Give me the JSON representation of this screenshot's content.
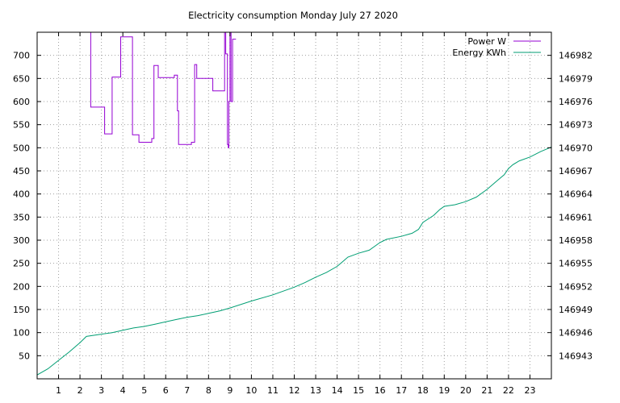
{
  "chart_data": {
    "type": "line",
    "title": "Electricity consumption Monday July 27 2020",
    "xlabel": "",
    "ylabel": "",
    "y2label": "",
    "xlim": [
      0,
      24
    ],
    "ylim": [
      0,
      750
    ],
    "y2lim": [
      146940,
      146985
    ],
    "x_ticks": [
      1,
      2,
      3,
      4,
      5,
      6,
      7,
      8,
      9,
      10,
      11,
      12,
      13,
      14,
      15,
      16,
      17,
      18,
      19,
      20,
      21,
      22,
      23
    ],
    "y_ticks": [
      50,
      100,
      150,
      200,
      250,
      300,
      350,
      400,
      450,
      500,
      550,
      600,
      650,
      700
    ],
    "y2_ticks": [
      146943,
      146946,
      146949,
      146952,
      146955,
      146958,
      146961,
      146964,
      146967,
      146970,
      146973,
      146976,
      146979,
      146982
    ],
    "grid": true,
    "legend_position": "top-right",
    "series": [
      {
        "name": "Power W",
        "axis": "left",
        "color": "#9400d3",
        "x": [
          2.5,
          2.5,
          3.15,
          3.15,
          3.5,
          3.5,
          3.9,
          3.9,
          4.45,
          4.45,
          4.75,
          4.75,
          5.35,
          5.35,
          5.45,
          5.45,
          5.65,
          5.65,
          6.4,
          6.4,
          6.55,
          6.55,
          6.6,
          6.6,
          7.2,
          7.2,
          7.35,
          7.35,
          7.45,
          7.45,
          8.2,
          8.2,
          8.75,
          8.75,
          8.8,
          8.8,
          8.88,
          8.88,
          8.92,
          8.92,
          8.95,
          8.95,
          9.0,
          9.0,
          9.05,
          9.05,
          9.12,
          9.12,
          9.28
        ],
        "y": [
          750,
          588,
          588,
          530,
          530,
          653,
          653,
          740,
          740,
          528,
          528,
          512,
          512,
          520,
          520,
          678,
          678,
          652,
          652,
          657,
          657,
          580,
          580,
          507,
          507,
          512,
          512,
          680,
          680,
          650,
          650,
          623,
          623,
          750,
          750,
          703,
          703,
          507,
          507,
          500,
          500,
          600,
          600,
          750,
          750,
          600,
          600,
          735,
          735
        ]
      },
      {
        "name": "Energy KWh",
        "axis": "right",
        "color": "#009e73",
        "x": [
          0,
          0.5,
          1,
          1.5,
          2,
          2.3,
          3,
          3.5,
          4,
          4.5,
          5,
          5.5,
          6,
          6.5,
          7,
          7.5,
          8,
          8.5,
          9,
          10,
          11,
          12,
          12.5,
          13,
          13.5,
          14,
          14.3,
          14.5,
          15,
          15.5,
          16,
          16.3,
          17,
          17.5,
          17.8,
          18,
          18.5,
          18.8,
          19,
          19.5,
          20,
          20.5,
          21,
          21.5,
          21.8,
          22,
          22.2,
          22.5,
          23,
          23.5,
          24
        ],
        "y": [
          146940.5,
          146941.3,
          146942.4,
          146943.5,
          146944.7,
          146945.5,
          146945.8,
          146946.0,
          146946.3,
          146946.6,
          146946.8,
          146947.1,
          146947.4,
          146947.7,
          146948.0,
          146948.2,
          146948.5,
          146948.8,
          146949.2,
          146950.1,
          146950.9,
          146951.9,
          146952.5,
          146953.2,
          146953.8,
          146954.6,
          146955.3,
          146955.8,
          146956.3,
          146956.7,
          146957.7,
          146958.1,
          146958.5,
          146958.9,
          146959.4,
          146960.3,
          146961.2,
          146962.0,
          146962.4,
          146962.6,
          146963.0,
          146963.6,
          146964.6,
          146965.8,
          146966.5,
          146967.3,
          146967.8,
          146968.3,
          146968.8,
          146969.5,
          146970.1
        ]
      }
    ]
  }
}
